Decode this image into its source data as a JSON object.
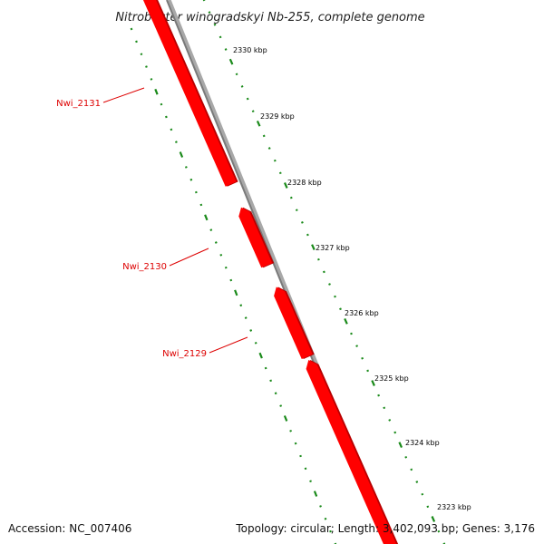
{
  "title": "Nitrobacter winogradskyi Nb-255, complete genome",
  "footer": {
    "accession": "Accession: NC_007406",
    "topology": "Topology: circular; Length: 3,402,093 bp; Genes: 3,176"
  },
  "colors": {
    "gene": "#ff0000",
    "gene_shadow": "#b80000",
    "backbone": "#8a8a8a",
    "ruler": "#1a8a1a",
    "label": "#dd0000"
  },
  "ticks": [
    "2330 kbp",
    "2329 kbp",
    "2328 kbp",
    "2327 kbp",
    "2326 kbp",
    "2325 kbp",
    "2324 kbp",
    "2323 kbp"
  ],
  "genes": [
    {
      "name": "Nwi_2131",
      "strand": "reverse"
    },
    {
      "name": "Nwi_2130",
      "strand": "reverse"
    },
    {
      "name": "Nwi_2129",
      "strand": "reverse"
    }
  ]
}
